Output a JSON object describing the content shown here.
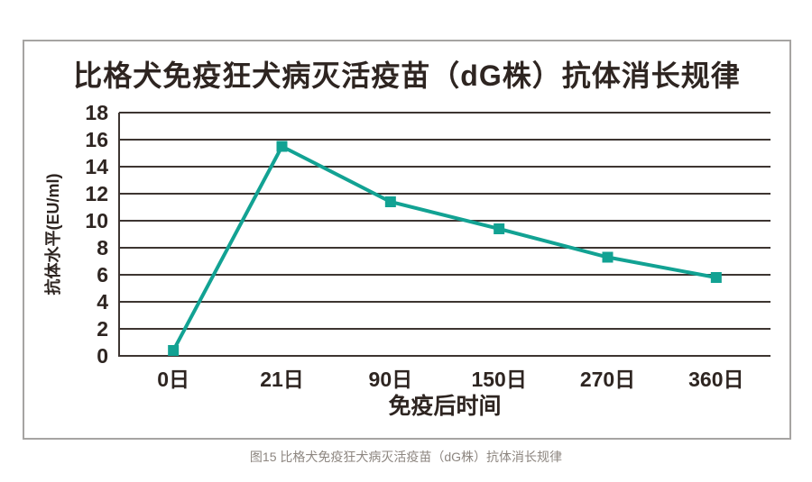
{
  "chart_data": {
    "type": "line",
    "title": "比格犬免疫狂犬病灭活疫苗（dG株）抗体消长规律",
    "categories": [
      "0日",
      "21日",
      "90日",
      "150日",
      "270日",
      "360日"
    ],
    "values": [
      0.4,
      15.5,
      11.4,
      9.4,
      7.3,
      5.8
    ],
    "xlabel": "免疫后时间",
    "ylabel": "抗体水平(EU/ml)",
    "ylim": [
      0,
      18
    ],
    "ytick_step": 2,
    "grid": "horizontal-only",
    "legend_position": "none",
    "marker": "square",
    "line_color": "#12a293"
  },
  "caption": "图15 比格犬免疫狂犬病灭活疫苗（dG株）抗体消长规律",
  "colors": {
    "accent": "#12a293",
    "text": "#2e2521",
    "gridline": "#3d3531",
    "frame_border": "#a6a4a2",
    "caption_text": "#8d8680"
  }
}
